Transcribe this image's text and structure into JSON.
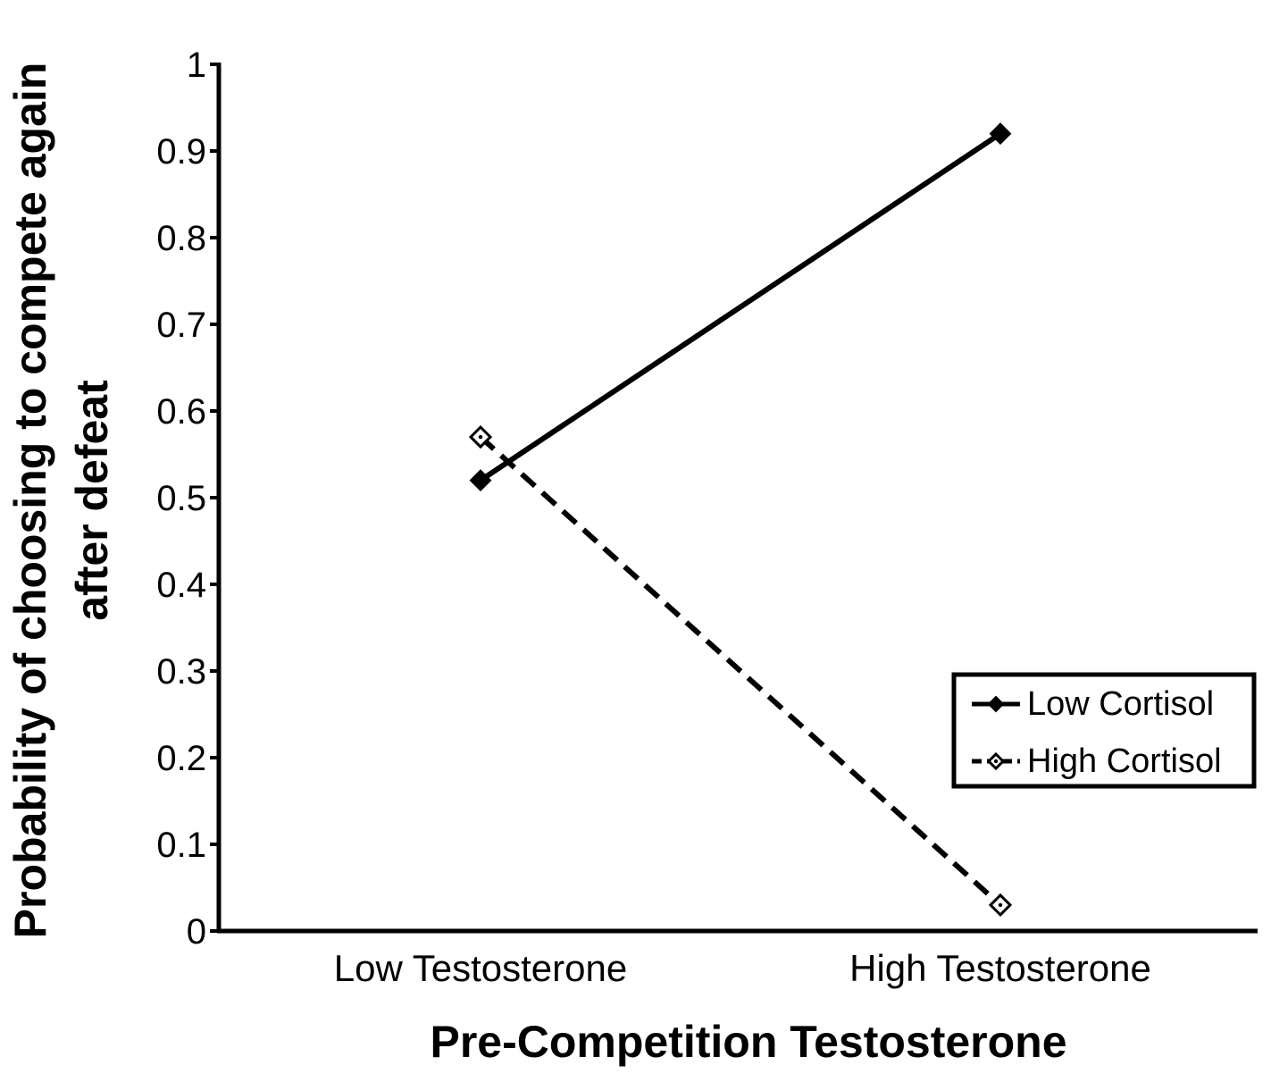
{
  "chart_data": {
    "type": "line",
    "title": "",
    "xlabel": "Pre-Competition Testosterone",
    "ylabel": [
      "Probability of choosing to compete again",
      "after defeat"
    ],
    "categories": [
      "Low Testosterone",
      "High Testosterone"
    ],
    "ylim": [
      0,
      1
    ],
    "yticks": [
      "0",
      "0.1",
      "0.2",
      "0.3",
      "0.4",
      "0.5",
      "0.6",
      "0.7",
      "0.8",
      "0.9",
      "1"
    ],
    "grid": false,
    "legend_position": "right",
    "series": [
      {
        "name": "Low Cortisol",
        "values": [
          0.52,
          0.92
        ],
        "line_style": "solid",
        "marker": "filled-diamond",
        "color": "#000000"
      },
      {
        "name": "High Cortisol",
        "values": [
          0.57,
          0.03
        ],
        "line_style": "dashed",
        "marker": "open-diamond",
        "color": "#000000"
      }
    ]
  }
}
